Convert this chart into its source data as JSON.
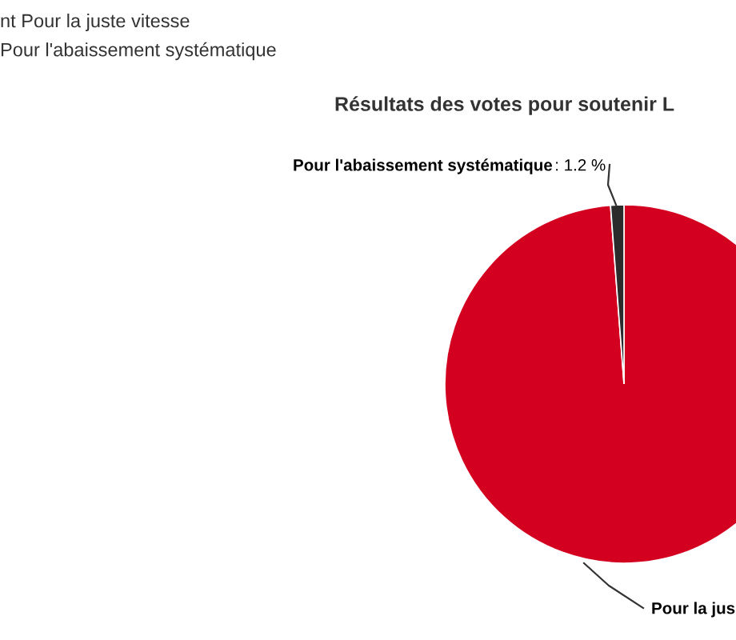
{
  "chart_data": {
    "type": "pie",
    "title": "Résultats des votes pour soutenir L",
    "categories": [
      "Pour la jus",
      "Pour l'abaissement systématique"
    ],
    "values": [
      98.8,
      1.2
    ],
    "colors": [
      "#d40020",
      "#2b2b2b"
    ],
    "value_labels": [
      null,
      ": 1.2 %"
    ],
    "annotations": [
      "nt Pour la juste vitesse",
      "Pour l'abaissement systématique"
    ]
  }
}
